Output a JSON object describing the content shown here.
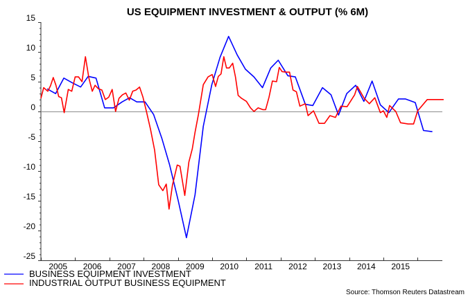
{
  "chart_data": {
    "type": "line",
    "title": "US EQUIPMENT INVESTMENT & OUTPUT (% 6M)",
    "xlabel": "",
    "ylabel": "",
    "xlim": [
      2005,
      2016.6
    ],
    "ylim": [
      -25,
      15
    ],
    "yticks": [
      15,
      10,
      5,
      0,
      -5,
      -10,
      -15,
      -20,
      -25
    ],
    "ytick_labels": [
      "15",
      "10",
      "5",
      "0",
      "-5",
      "-10",
      "-15",
      "-20",
      "-25"
    ],
    "xtick_labels": [
      "2005",
      "2006",
      "2007",
      "2008",
      "2009",
      "2010",
      "2011",
      "2012",
      "2013",
      "2014",
      "2015"
    ],
    "zero_line": true,
    "grid": false,
    "legend_position": "bottom-left",
    "source": "Source: Thomson Reuters Datastream",
    "series": [
      {
        "name": "BUSINESS EQUIPMENT INVESTMENT",
        "color": "#0000ff",
        "x": [
          2005.18,
          2005.43,
          2005.67,
          2005.92,
          2006.16,
          2006.38,
          2006.61,
          2006.86,
          2007.12,
          2007.37,
          2007.59,
          2007.8,
          2008.04,
          2008.29,
          2008.53,
          2008.76,
          2009.01,
          2009.25,
          2009.5,
          2009.74,
          2009.99,
          2010.23,
          2010.48,
          2010.73,
          2010.97,
          2011.22,
          2011.47,
          2011.71,
          2011.93,
          2012.21,
          2012.43,
          2012.72,
          2012.94,
          2013.22,
          2013.47,
          2013.69,
          2013.93,
          2014.19,
          2014.43,
          2014.67,
          2014.91,
          2015.16,
          2015.44,
          2015.64,
          2015.93,
          2016.17,
          2016.43
        ],
        "values": [
          3.8,
          3.0,
          5.6,
          4.8,
          4.1,
          5.9,
          5.6,
          0.6,
          0.6,
          1.6,
          2.3,
          1.6,
          1.6,
          -0.5,
          -4.5,
          -9.0,
          -15.0,
          -21.2,
          -14.0,
          -2.5,
          4.5,
          9.1,
          12.6,
          9.5,
          7.1,
          5.8,
          4.0,
          7.3,
          8.6,
          6.0,
          5.8,
          1.2,
          1.0,
          4.0,
          2.8,
          -0.6,
          3.0,
          4.4,
          1.7,
          5.1,
          1.1,
          -0.2,
          2.1,
          2.1,
          1.5,
          -3.2,
          -3.4
        ]
      },
      {
        "name": "INDUSTRIAL OUTPUT BUSINESS EQUIPMENT",
        "color": "#ff0000",
        "x": [
          2005.0,
          2005.08,
          2005.2,
          2005.28,
          2005.36,
          2005.44,
          2005.52,
          2005.6,
          2005.68,
          2005.8,
          2005.9,
          2006.0,
          2006.1,
          2006.2,
          2006.3,
          2006.4,
          2006.5,
          2006.58,
          2006.68,
          2006.78,
          2006.88,
          2006.98,
          2007.08,
          2007.18,
          2007.28,
          2007.38,
          2007.48,
          2007.58,
          2007.68,
          2007.78,
          2007.88,
          2007.98,
          2008.08,
          2008.2,
          2008.32,
          2008.44,
          2008.56,
          2008.66,
          2008.74,
          2008.84,
          2008.98,
          2009.06,
          2009.2,
          2009.32,
          2009.42,
          2009.5,
          2009.6,
          2009.74,
          2009.88,
          2010.0,
          2010.1,
          2010.18,
          2010.26,
          2010.34,
          2010.42,
          2010.5,
          2010.6,
          2010.68,
          2010.76,
          2010.86,
          2011.0,
          2011.12,
          2011.22,
          2011.34,
          2011.48,
          2011.56,
          2011.66,
          2011.76,
          2011.88,
          2011.96,
          2012.04,
          2012.16,
          2012.26,
          2012.36,
          2012.46,
          2012.56,
          2012.72,
          2012.8,
          2012.96,
          2013.12,
          2013.28,
          2013.44,
          2013.6,
          2013.76,
          2013.94,
          2014.16,
          2014.24,
          2014.44,
          2014.59,
          2014.75,
          2014.91,
          2015.0,
          2015.1,
          2015.18,
          2015.36,
          2015.5,
          2015.72,
          2015.88,
          2016.0,
          2016.28,
          2016.42,
          2016.62,
          2016.76
        ],
        "values": [
          2.2,
          4.0,
          3.4,
          4.3,
          5.7,
          4.4,
          2.5,
          2.3,
          -0.2,
          3.7,
          3.4,
          5.8,
          5.8,
          5.0,
          9.2,
          5.6,
          3.4,
          4.4,
          3.8,
          3.6,
          2.0,
          2.4,
          3.7,
          0.0,
          2.2,
          2.8,
          3.1,
          1.9,
          3.4,
          3.6,
          4.1,
          2.4,
          0.0,
          -3.0,
          -6.5,
          -12.3,
          -13.3,
          -12.2,
          -16.4,
          -12.4,
          -9.0,
          -9.2,
          -14.1,
          -8.5,
          -6.3,
          -3.5,
          -0.5,
          4.5,
          5.8,
          6.2,
          4.2,
          5.9,
          6.3,
          9.2,
          7.3,
          7.3,
          8.1,
          5.8,
          2.7,
          2.2,
          1.7,
          0.6,
          0.0,
          0.6,
          0.3,
          0.3,
          2.4,
          5.1,
          5.0,
          7.4,
          6.7,
          6.6,
          6.6,
          3.6,
          3.3,
          0.9,
          1.3,
          -0.7,
          0.1,
          -2.0,
          -2.0,
          -0.7,
          -1.0,
          0.9,
          0.8,
          2.8,
          4.2,
          2.2,
          1.3,
          2.3,
          -0.2,
          0.1,
          -1.0,
          1.0,
          0.0,
          -1.9,
          -2.1,
          -2.1,
          0.1,
          2.0,
          2.0,
          2.0,
          2.0
        ]
      }
    ]
  }
}
